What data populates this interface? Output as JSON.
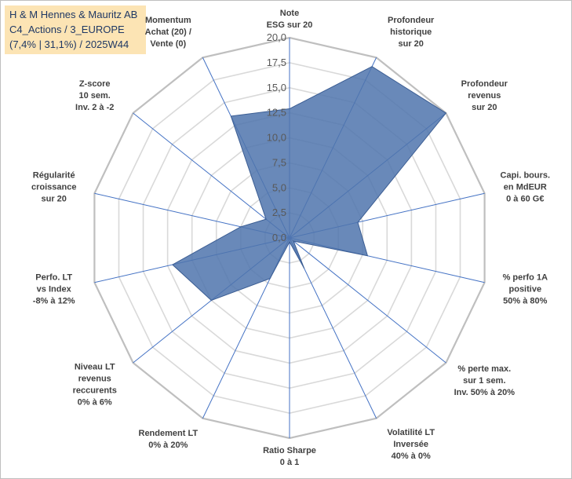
{
  "title": {
    "line1": "H & M Hennes & Mauritz AB",
    "line2": "C4_Actions / 3_EUROPE",
    "line3": "(7,4% | 31,1%) / 2025W44"
  },
  "chart_data": {
    "type": "radar",
    "rmin": 0,
    "rmax": 20,
    "ticks": [
      "0,0",
      "2,5",
      "5,0",
      "7,5",
      "10,0",
      "12,5",
      "15,0",
      "17,5",
      "20,0"
    ],
    "axes": [
      {
        "label": [
          "Note",
          "ESG sur 20"
        ],
        "value": 12.9
      },
      {
        "label": [
          "Profondeur",
          "historique",
          "sur 20"
        ],
        "value": 19.0
      },
      {
        "label": [
          "Profondeur",
          "revenus",
          "sur 20"
        ],
        "value": 20.0
      },
      {
        "label": [
          "Capi. bours.",
          "en MdEUR",
          "0 à 60 G€"
        ],
        "value": 7.0
      },
      {
        "label": [
          "% perfo 1A",
          "positive",
          "50% à 80%"
        ],
        "value": 8.0
      },
      {
        "label": [
          "% perte max.",
          "sur 1 sem.",
          "Inv. 50% à 20%"
        ],
        "value": 0.5
      },
      {
        "label": [
          "Volatilité LT",
          "Inversée",
          "40% à 0%"
        ],
        "value": 3.4
      },
      {
        "label": [
          "Ratio Sharpe",
          "0 à 1"
        ],
        "value": 0.4
      },
      {
        "label": [
          "Rendement LT",
          "0% à 20%"
        ],
        "value": 4.5
      },
      {
        "label": [
          "Niveau LT",
          "revenus",
          "reccurents",
          "0% à 6%"
        ],
        "value": 10.0
      },
      {
        "label": [
          "Perfo. LT",
          "vs Index",
          "-8% à 12%"
        ],
        "value": 12.0
      },
      {
        "label": [
          "Régularité",
          "croissance",
          "sur 20"
        ],
        "value": 5.0
      },
      {
        "label": [
          "Z-score",
          "10 sem.",
          "Inv. 2 à -2"
        ],
        "value": 3.0
      },
      {
        "label": [
          "Momentum",
          "Achat (20) /",
          "Vente (0)"
        ],
        "value": 13.5
      }
    ],
    "series_color": "#4f74ad"
  }
}
